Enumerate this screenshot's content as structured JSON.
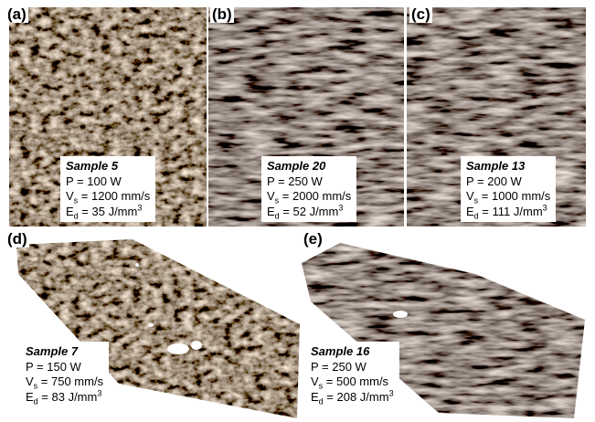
{
  "panels": [
    {
      "label": "(a)",
      "sample": "Sample 5",
      "power": "P = 100 W",
      "speed": {
        "symbol": "V",
        "sub": "s",
        "text": " = 1200 mm/s"
      },
      "energy": {
        "symbol": "E",
        "sub": "d",
        "text": " = 35 J/mm",
        "sup": "3"
      }
    },
    {
      "label": "(b)",
      "sample": "Sample 20",
      "power": "P = 250 W",
      "speed": {
        "symbol": "V",
        "sub": "s",
        "text": " = 2000 mm/s"
      },
      "energy": {
        "symbol": "E",
        "sub": "d",
        "text": " = 52 J/mm",
        "sup": "3"
      }
    },
    {
      "label": "(c)",
      "sample": "Sample 13",
      "power": "P = 200 W",
      "speed": {
        "symbol": "V",
        "sub": "s",
        "text": " = 1000 mm/s"
      },
      "energy": {
        "symbol": "E",
        "sub": "d",
        "text": " = 111 J/mm",
        "sup": "3"
      }
    },
    {
      "label": "(d)",
      "sample": "Sample 7",
      "power": "P = 150 W",
      "speed": {
        "symbol": "V",
        "sub": "s",
        "text": " = 750 mm/s"
      },
      "energy": {
        "symbol": "E",
        "sub": "d",
        "text": " = 83 J/mm",
        "sup": "3"
      }
    },
    {
      "label": "(e)",
      "sample": "Sample 16",
      "power": "P = 250 W",
      "speed": {
        "symbol": "V",
        "sub": "s",
        "text": " = 500 mm/s"
      },
      "energy": {
        "symbol": "E",
        "sub": "d",
        "text": " = 208 J/mm",
        "sup": "3"
      }
    }
  ]
}
